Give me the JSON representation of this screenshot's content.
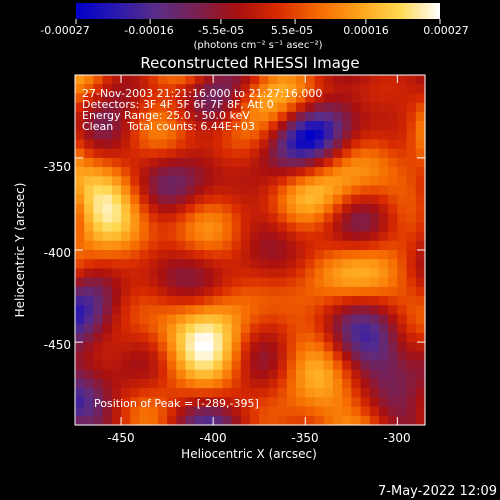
{
  "colorbar": {
    "tick_labels": [
      "-0.00027",
      "-0.00016",
      "-5.5e-05",
      "5.5e-05",
      "0.00016",
      "0.00027"
    ],
    "tick_values": [
      -0.00027,
      -0.00016,
      -5.5e-05,
      5.5e-05,
      0.00016,
      0.00027
    ],
    "range": [
      -0.00027,
      0.00027
    ],
    "units": "(photons cm⁻² s⁻¹ asec⁻²)",
    "stops": [
      "#0000c8",
      "#2a18b0",
      "#5a2d86",
      "#7a2050",
      "#a81010",
      "#d82a00",
      "#f56a00",
      "#ffa21a",
      "#ffd850",
      "#ffffff"
    ]
  },
  "annotations": {
    "time_range": "27-Nov-2003 21:21:16.000 to 21:27:16.000",
    "detectors": "Detectors: 3F 4F 5F 6F 7F 8F, Att 0",
    "energy_range": "Energy Range: 25.0 - 50.0 keV",
    "clean_counts": "Clean    Total counts: 6.44E+03",
    "peak": "Position of Peak = [-289,-395]"
  },
  "footer": {
    "timestamp": "7-May-2022 12:09"
  },
  "chart_data": {
    "type": "heatmap",
    "title": "Reconstructed RHESSI Image",
    "xlabel": "Heliocentric X (arcsec)",
    "ylabel": "Heliocentric Y (arcsec)",
    "xlim": [
      -475,
      -285
    ],
    "ylim": [
      -495,
      -305
    ],
    "x_ticks": [
      -450,
      -400,
      -350,
      -300
    ],
    "x_tick_labels": [
      "-450",
      "-400",
      "-350",
      "-300"
    ],
    "y_ticks": [
      -350,
      -400,
      -450
    ],
    "y_tick_labels": [
      "-350",
      "-400",
      "-450"
    ],
    "zlim": [
      -0.00027,
      0.00027
    ],
    "grid": false,
    "peak_position": [
      -289,
      -395
    ],
    "grid_size": [
      38,
      38
    ],
    "seed": 20031127
  }
}
